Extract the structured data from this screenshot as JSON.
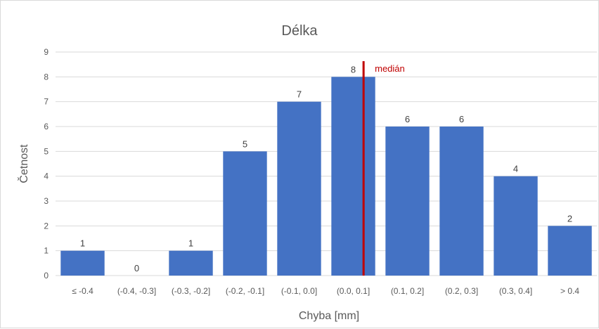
{
  "chart_data": {
    "type": "bar",
    "title": "Délka",
    "xlabel": "Chyba [mm]",
    "ylabel": "Četnost",
    "categories": [
      "≤ -0.4",
      "(-0.4, -0.3]",
      "(-0.3, -0.2]",
      "(-0.2, -0.1]",
      "(-0.1, 0.0]",
      "(0.0, 0.1]",
      "(0.1, 0.2]",
      "(0.2, 0.3]",
      "(0.3, 0.4]",
      "> 0.4"
    ],
    "values": [
      1,
      0,
      1,
      5,
      7,
      8,
      6,
      6,
      4,
      2
    ],
    "ylim": [
      0,
      9
    ],
    "yticks": [
      0,
      1,
      2,
      3,
      4,
      5,
      6,
      7,
      8,
      9
    ],
    "grid": true,
    "bar_color": "#4472c4",
    "annotation": {
      "label": "medián",
      "color": "#c00000",
      "x_position": 0.069
    }
  }
}
